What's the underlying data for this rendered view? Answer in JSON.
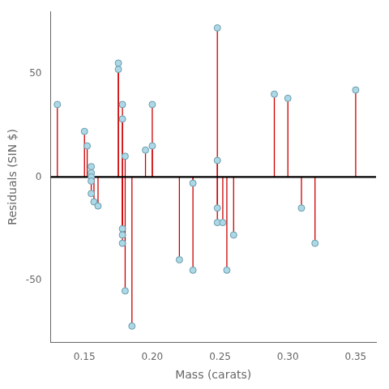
{
  "chart_data": {
    "type": "scatter",
    "xlabel": "Mass (carats)",
    "ylabel": "Residuals (SIN $)",
    "x": [
      0.13,
      0.15,
      0.152,
      0.155,
      0.155,
      0.155,
      0.155,
      0.155,
      0.157,
      0.16,
      0.175,
      0.175,
      0.178,
      0.178,
      0.18,
      0.178,
      0.178,
      0.178,
      0.18,
      0.185,
      0.195,
      0.2,
      0.2,
      0.22,
      0.23,
      0.23,
      0.248,
      0.248,
      0.248,
      0.248,
      0.252,
      0.255,
      0.26,
      0.29,
      0.3,
      0.31,
      0.32,
      0.35
    ],
    "values": [
      35,
      22,
      15,
      5,
      2,
      0,
      -2,
      -8,
      -12,
      -14,
      55,
      52,
      35,
      28,
      10,
      -25,
      -28,
      -32,
      -55,
      -72,
      13,
      15,
      35,
      -40,
      -3,
      -45,
      8,
      -15,
      -22,
      72,
      -22,
      -45,
      -28,
      40,
      38,
      -15,
      -32,
      42
    ],
    "color": "#ADD8E6",
    "edge_color": "#6699AA",
    "marker": "circle",
    "stems": {
      "color": "#CC0000"
    },
    "hline": {
      "value": 0,
      "color": "#000000"
    },
    "xlim": [
      0.125,
      0.365
    ],
    "ylim": [
      -80,
      80
    ],
    "xticks": [
      0.15,
      {
        "value": 0.2,
        "label": "0.20"
      },
      0.25,
      {
        "value": 0.3,
        "label": "0.30"
      },
      0.35
    ],
    "yticks": [
      -50,
      0,
      50
    ],
    "grid": false
  }
}
